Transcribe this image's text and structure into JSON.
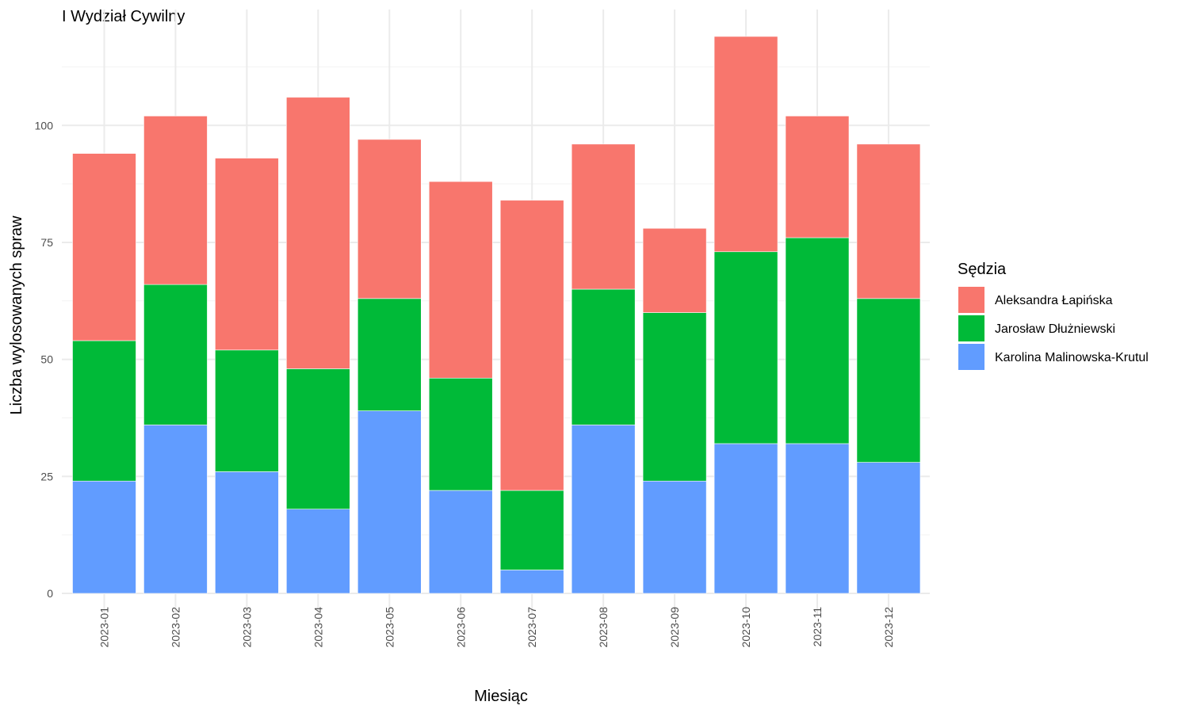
{
  "chart_data": {
    "type": "bar",
    "stacked": true,
    "title": "I Wydział Cywilny",
    "xlabel": "Miesiąc",
    "ylabel": "Liczba wylosowanych spraw",
    "ylim": [
      0,
      125
    ],
    "yticks": [
      0,
      25,
      50,
      75,
      100
    ],
    "ytick_labels": [
      "0",
      "25",
      "50",
      "75",
      "100"
    ],
    "grid": true,
    "legend": {
      "title": "Sędzia",
      "position": "right"
    },
    "categories": [
      "2023-01",
      "2023-02",
      "2023-03",
      "2023-04",
      "2023-05",
      "2023-06",
      "2023-07",
      "2023-08",
      "2023-09",
      "2023-10",
      "2023-11",
      "2023-12"
    ],
    "series": [
      {
        "name": "Aleksandra Łapińska",
        "color": "#F8766D",
        "values": [
          40,
          36,
          41,
          58,
          34,
          42,
          62,
          31,
          18,
          46,
          26,
          33
        ]
      },
      {
        "name": "Jarosław Dłużniewski",
        "color": "#00BA38",
        "values": [
          30,
          30,
          26,
          30,
          24,
          24,
          17,
          29,
          36,
          41,
          44,
          35
        ]
      },
      {
        "name": "Karolina Malinowska-Krutul",
        "color": "#619CFF",
        "values": [
          24,
          36,
          26,
          18,
          39,
          22,
          5,
          36,
          24,
          32,
          32,
          28
        ]
      }
    ]
  }
}
